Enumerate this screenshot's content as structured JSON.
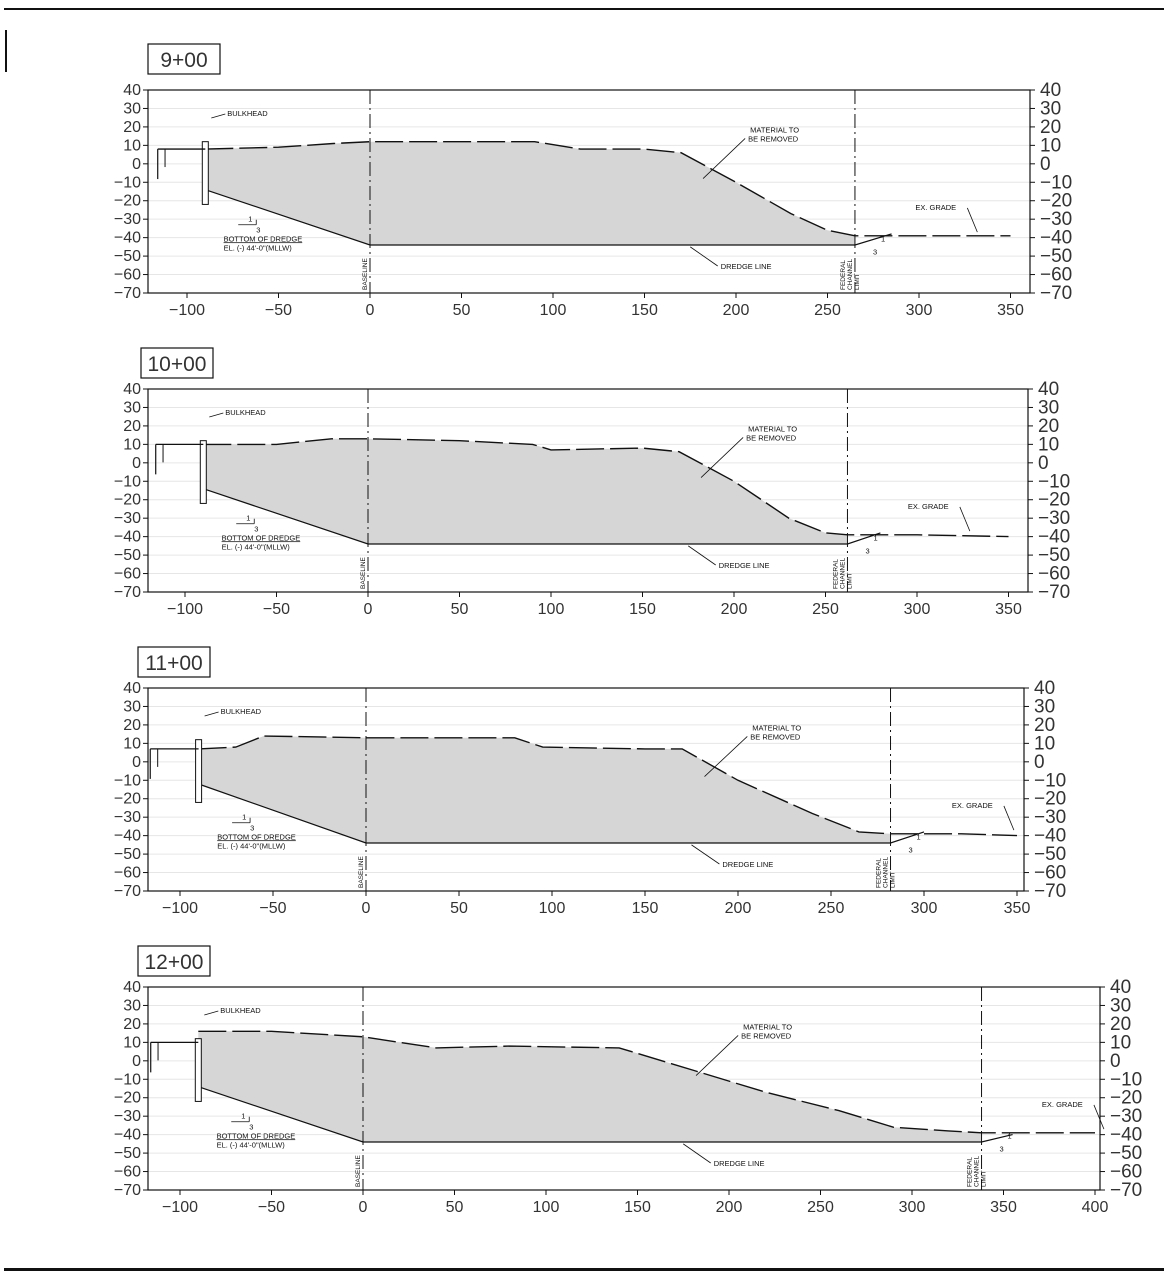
{
  "labels": {
    "bulkhead": "BULKHEAD",
    "material_line1": "MATERIAL TO",
    "material_line2": "BE REMOVED",
    "bottom_line1": "BOTTOM OF DREDGE",
    "bottom_line2": "EL. (-) 44'-0\"(MLLW)",
    "dredge_line": "DREDGE LINE",
    "ex_grade": "EX. GRADE",
    "baseline": "BASELINE",
    "federal_line1": "FEDERAL",
    "federal_line2": "CHANNEL",
    "federal_line3": "LIMIT",
    "slope_rise": "1",
    "slope_run": "3"
  },
  "colors": {
    "fill": "#d6d6d6",
    "line": "#111111",
    "grid": "#e6e6e6"
  },
  "chart_data": [
    {
      "type": "area",
      "station": "9+00",
      "xticks": [
        -100,
        -50,
        0,
        50,
        100,
        150,
        200,
        250,
        300,
        350
      ],
      "yticks": [
        40,
        30,
        20,
        10,
        0,
        -10,
        -20,
        -30,
        -40,
        -50,
        -60,
        -70
      ],
      "xlim": [
        -120,
        360
      ],
      "ylim": [
        -70,
        40
      ],
      "baseline_x": 0,
      "federal_limit_x": 265,
      "dredge_elevation": -44,
      "bulkhead_x": -90,
      "ex_grade": [
        [
          -115,
          8
        ],
        [
          -90,
          8
        ],
        [
          -50,
          9
        ],
        [
          -20,
          11
        ],
        [
          0,
          12
        ],
        [
          50,
          12
        ],
        [
          90,
          12
        ],
        [
          115,
          8
        ],
        [
          150,
          8
        ],
        [
          170,
          6
        ],
        [
          200,
          -10
        ],
        [
          230,
          -27
        ],
        [
          250,
          -36
        ],
        [
          265,
          -39
        ],
        [
          300,
          -39
        ],
        [
          350,
          -39
        ]
      ],
      "dredge_line": [
        [
          -90,
          -14
        ],
        [
          0,
          -44
        ],
        [
          265,
          -44
        ],
        [
          285,
          -38
        ]
      ]
    },
    {
      "type": "area",
      "station": "10+00",
      "xticks": [
        -100,
        -50,
        0,
        50,
        100,
        150,
        200,
        250,
        300,
        350
      ],
      "yticks": [
        40,
        30,
        20,
        10,
        0,
        -10,
        -20,
        -30,
        -40,
        -50,
        -60,
        -70
      ],
      "xlim": [
        -120,
        360
      ],
      "ylim": [
        -70,
        40
      ],
      "baseline_x": 0,
      "federal_limit_x": 262,
      "dredge_elevation": -44,
      "bulkhead_x": -90,
      "ex_grade": [
        [
          -115,
          10
        ],
        [
          -90,
          10
        ],
        [
          -50,
          10
        ],
        [
          -20,
          13
        ],
        [
          0,
          13
        ],
        [
          50,
          12
        ],
        [
          90,
          10
        ],
        [
          100,
          7
        ],
        [
          150,
          8
        ],
        [
          170,
          6
        ],
        [
          200,
          -10
        ],
        [
          230,
          -30
        ],
        [
          250,
          -38
        ],
        [
          262,
          -39
        ],
        [
          300,
          -39
        ],
        [
          350,
          -40
        ]
      ],
      "dredge_line": [
        [
          -90,
          -14
        ],
        [
          0,
          -44
        ],
        [
          262,
          -44
        ],
        [
          280,
          -38
        ]
      ]
    },
    {
      "type": "area",
      "station": "11+00",
      "xticks": [
        -100,
        -50,
        0,
        50,
        100,
        150,
        200,
        250,
        300,
        350
      ],
      "yticks": [
        40,
        30,
        20,
        10,
        0,
        -10,
        -20,
        -30,
        -40,
        -50,
        -60,
        -70
      ],
      "xlim": [
        -120,
        360
      ],
      "ylim": [
        -70,
        40
      ],
      "baseline_x": 0,
      "federal_limit_x": 282,
      "dredge_elevation": -44,
      "bulkhead_x": -90,
      "ex_grade": [
        [
          -115,
          7
        ],
        [
          -90,
          7
        ],
        [
          -70,
          8
        ],
        [
          -55,
          14
        ],
        [
          0,
          13
        ],
        [
          50,
          13
        ],
        [
          80,
          13
        ],
        [
          95,
          8
        ],
        [
          150,
          7
        ],
        [
          170,
          7
        ],
        [
          200,
          -10
        ],
        [
          240,
          -28
        ],
        [
          265,
          -38
        ],
        [
          282,
          -39
        ],
        [
          320,
          -39
        ],
        [
          350,
          -40
        ]
      ],
      "dredge_line": [
        [
          -90,
          -12
        ],
        [
          0,
          -44
        ],
        [
          282,
          -44
        ],
        [
          300,
          -38
        ]
      ]
    },
    {
      "type": "area",
      "station": "12+00",
      "xticks": [
        -100,
        -50,
        0,
        50,
        100,
        150,
        200,
        250,
        300,
        350,
        400
      ],
      "yticks": [
        40,
        30,
        20,
        10,
        0,
        -10,
        -20,
        -30,
        -40,
        -50,
        -60,
        -70
      ],
      "xlim": [
        -120,
        400
      ],
      "ylim": [
        -70,
        40
      ],
      "baseline_x": 0,
      "federal_limit_x": 338,
      "dredge_elevation": -44,
      "bulkhead_x": -90,
      "ex_grade": [
        [
          -118,
          10
        ],
        [
          -90,
          16
        ],
        [
          -50,
          16
        ],
        [
          0,
          13
        ],
        [
          40,
          7
        ],
        [
          80,
          8
        ],
        [
          140,
          7
        ],
        [
          180,
          -5
        ],
        [
          220,
          -17
        ],
        [
          260,
          -27
        ],
        [
          290,
          -36
        ],
        [
          320,
          -38
        ],
        [
          338,
          -39
        ],
        [
          370,
          -39
        ],
        [
          400,
          -39
        ]
      ],
      "dredge_line": [
        [
          -90,
          -14
        ],
        [
          0,
          -44
        ],
        [
          338,
          -44
        ],
        [
          355,
          -40
        ]
      ]
    }
  ]
}
